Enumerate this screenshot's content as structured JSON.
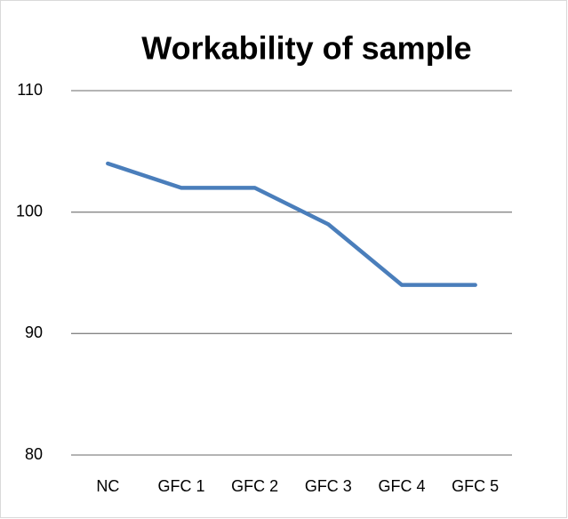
{
  "chart_data": {
    "type": "line",
    "title": "Workability of sample",
    "categories": [
      "NC",
      "GFC 1",
      "GFC 2",
      "GFC 3",
      "GFC 4",
      "GFC 5"
    ],
    "values": [
      104,
      102,
      102,
      99,
      94,
      94
    ],
    "color": "#4a7ebb",
    "ylim": [
      80,
      110
    ],
    "yticks": [
      80,
      90,
      100,
      110
    ],
    "grid": true
  }
}
